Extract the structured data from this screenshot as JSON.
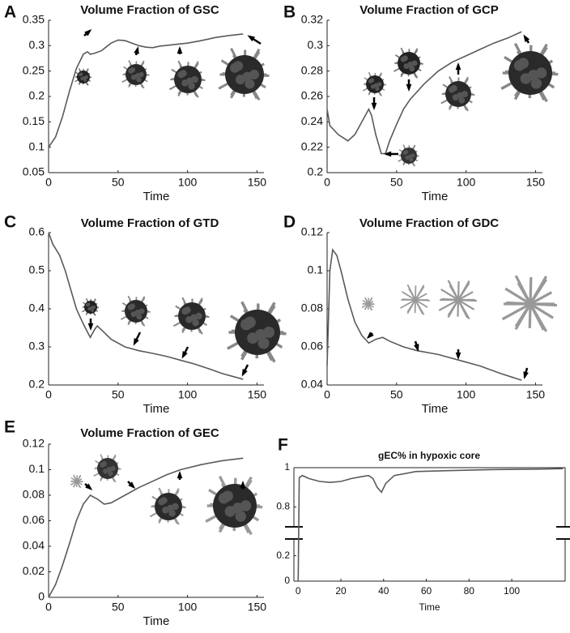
{
  "chart_data": [
    {
      "type": "line",
      "panel": "A",
      "title": "Volume Fraction of GSC",
      "xlabel": "Time",
      "color": "#5a5a5a",
      "x": [
        0,
        5,
        10,
        15,
        20,
        25,
        28,
        30,
        33,
        38,
        45,
        50,
        55,
        60,
        65,
        70,
        75,
        80,
        90,
        100,
        110,
        120,
        130,
        140
      ],
      "values": [
        0.1,
        0.12,
        0.16,
        0.21,
        0.255,
        0.283,
        0.288,
        0.283,
        0.285,
        0.29,
        0.305,
        0.311,
        0.31,
        0.305,
        0.3,
        0.297,
        0.296,
        0.299,
        0.302,
        0.305,
        0.31,
        0.316,
        0.32,
        0.323
      ],
      "xlim": [
        0,
        155
      ],
      "xticks": [
        0,
        50,
        100,
        150
      ],
      "ylim": [
        0.05,
        0.35
      ],
      "yticks": [
        0.05,
        0.1,
        0.15,
        0.2,
        0.25,
        0.3,
        0.35
      ]
    },
    {
      "type": "line",
      "panel": "B",
      "title": "Volume Fraction of GCP",
      "xlabel": "Time",
      "color": "#5a5a5a",
      "x": [
        0,
        2,
        8,
        15,
        20,
        25,
        30,
        32,
        35,
        39,
        42,
        45,
        50,
        55,
        60,
        70,
        80,
        90,
        100,
        110,
        120,
        130,
        140
      ],
      "values": [
        0.25,
        0.237,
        0.23,
        0.225,
        0.23,
        0.24,
        0.25,
        0.245,
        0.23,
        0.215,
        0.215,
        0.225,
        0.238,
        0.25,
        0.258,
        0.27,
        0.28,
        0.287,
        0.292,
        0.297,
        0.302,
        0.306,
        0.311
      ],
      "xlim": [
        0,
        155
      ],
      "xticks": [
        0,
        50,
        100,
        150
      ],
      "ylim": [
        0.2,
        0.32
      ],
      "yticks": [
        0.2,
        0.22,
        0.24,
        0.26,
        0.28,
        0.3,
        0.32
      ]
    },
    {
      "type": "line",
      "panel": "C",
      "title": "Volume Fraction of GTD",
      "xlabel": "Time",
      "color": "#5a5a5a",
      "x": [
        0,
        3,
        8,
        12,
        16,
        20,
        25,
        30,
        33,
        35,
        38,
        45,
        55,
        65,
        75,
        85,
        95,
        105,
        115,
        125,
        140
      ],
      "values": [
        0.6,
        0.57,
        0.54,
        0.5,
        0.45,
        0.4,
        0.36,
        0.325,
        0.345,
        0.355,
        0.345,
        0.32,
        0.3,
        0.29,
        0.283,
        0.275,
        0.265,
        0.255,
        0.243,
        0.23,
        0.215
      ],
      "xlim": [
        0,
        155
      ],
      "xticks": [
        0,
        50,
        100,
        150
      ],
      "ylim": [
        0.2,
        0.6
      ],
      "yticks": [
        0.2,
        0.3,
        0.4,
        0.5,
        0.6
      ]
    },
    {
      "type": "line",
      "panel": "D",
      "title": "Volume Fraction of GDC",
      "xlabel": "Time",
      "color": "#5a5a5a",
      "x": [
        0,
        2,
        4,
        7,
        10,
        15,
        20,
        25,
        30,
        35,
        40,
        45,
        55,
        65,
        80,
        95,
        110,
        125,
        140
      ],
      "values": [
        0.05,
        0.1,
        0.111,
        0.108,
        0.1,
        0.085,
        0.073,
        0.066,
        0.062,
        0.064,
        0.065,
        0.063,
        0.06,
        0.058,
        0.056,
        0.053,
        0.05,
        0.046,
        0.0425
      ],
      "xlim": [
        0,
        155
      ],
      "xticks": [
        0,
        50,
        100,
        150
      ],
      "ylim": [
        0.04,
        0.12
      ],
      "yticks": [
        0.04,
        0.06,
        0.08,
        0.1,
        0.12
      ]
    },
    {
      "type": "line",
      "panel": "E",
      "title": "Volume Fraction of GEC",
      "xlabel": "Time",
      "color": "#5a5a5a",
      "x": [
        0,
        5,
        10,
        15,
        20,
        25,
        30,
        35,
        40,
        45,
        55,
        65,
        75,
        85,
        95,
        110,
        125,
        140
      ],
      "values": [
        0,
        0.01,
        0.025,
        0.042,
        0.06,
        0.073,
        0.08,
        0.077,
        0.073,
        0.074,
        0.08,
        0.086,
        0.091,
        0.096,
        0.1,
        0.104,
        0.107,
        0.109
      ],
      "xlim": [
        0,
        155
      ],
      "xticks": [
        0,
        50,
        100,
        150
      ],
      "ylim": [
        0,
        0.12
      ],
      "yticks": [
        0,
        0.02,
        0.04,
        0.06,
        0.08,
        0.1,
        0.12
      ]
    },
    {
      "type": "line",
      "panel": "F",
      "title": "gEC% in hypoxic core",
      "xlabel": "Time",
      "color": "#5a5a5a",
      "x": [
        0,
        0.5,
        2,
        5,
        10,
        15,
        20,
        25,
        30,
        33,
        35,
        37,
        39,
        41,
        45,
        55,
        70,
        90,
        115,
        124
      ],
      "values": [
        0,
        0.95,
        0.96,
        0.945,
        0.93,
        0.925,
        0.93,
        0.945,
        0.955,
        0.96,
        0.945,
        0.9,
        0.875,
        0.92,
        0.96,
        0.98,
        0.985,
        0.99,
        0.993,
        0.995
      ],
      "xlim": [
        -2,
        125
      ],
      "xticks": [
        0,
        20,
        40,
        60,
        80,
        100
      ],
      "ylim": [
        0,
        1
      ],
      "ybreak": [
        0.3,
        0.72
      ],
      "yticks": [
        0,
        0.2,
        0.8,
        1
      ]
    }
  ]
}
